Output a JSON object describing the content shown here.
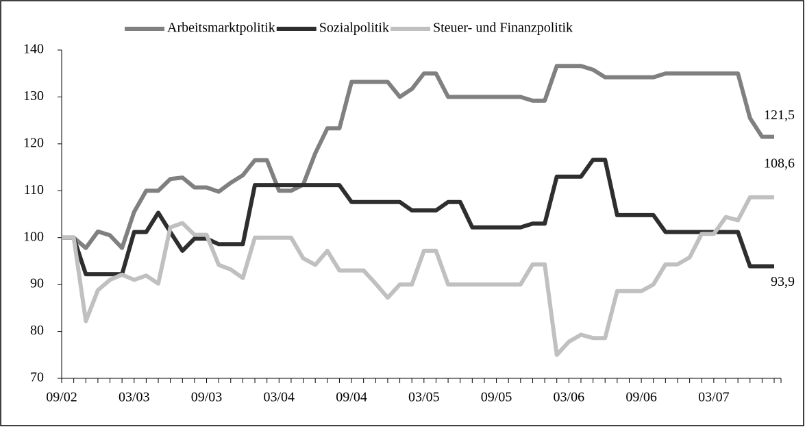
{
  "chart_data": {
    "type": "line",
    "categories": [
      "09/02",
      null,
      null,
      null,
      null,
      null,
      "03/03",
      null,
      null,
      null,
      null,
      null,
      "09/03",
      null,
      null,
      null,
      null,
      null,
      "03/04",
      null,
      null,
      null,
      null,
      null,
      "09/04",
      null,
      null,
      null,
      null,
      null,
      "03/05",
      null,
      null,
      null,
      null,
      null,
      "09/05",
      null,
      null,
      null,
      null,
      null,
      "03/06",
      null,
      null,
      null,
      null,
      null,
      "09/06",
      null,
      null,
      null,
      null,
      null,
      "03/07",
      null,
      null,
      null,
      null,
      null
    ],
    "series": [
      {
        "name": "Arbeitsmarktpolitik",
        "color": "#808080",
        "end_label": "121,5",
        "values": [
          100,
          100,
          97.8,
          101.3,
          100.5,
          97.8,
          105.5,
          110,
          110,
          112.5,
          112.8,
          110.7,
          110.7,
          109.8,
          111.7,
          113.3,
          116.5,
          116.5,
          110,
          110,
          111.3,
          118,
          123.3,
          123.3,
          133.2,
          133.2,
          133.2,
          133.2,
          130,
          131.7,
          135,
          135,
          130,
          130,
          130,
          130,
          130,
          130,
          130,
          129.2,
          129.2,
          136.6,
          136.6,
          136.6,
          135.8,
          134.2,
          134.2,
          134.2,
          134.2,
          134.2,
          135,
          135,
          135,
          135,
          135,
          135,
          135,
          125.5,
          121.5,
          121.5
        ]
      },
      {
        "name": "Sozialpolitik",
        "color": "#2e2e2e",
        "end_label": "93,9",
        "values": [
          100,
          100,
          92.2,
          92.2,
          92.2,
          92.2,
          101.2,
          101.2,
          105.3,
          101.2,
          97.2,
          99.8,
          99.8,
          98.6,
          98.6,
          98.6,
          111.2,
          111.2,
          111.2,
          111.2,
          111.2,
          111.2,
          111.2,
          111.2,
          107.6,
          107.6,
          107.6,
          107.6,
          107.6,
          105.8,
          105.8,
          105.8,
          107.6,
          107.6,
          102.2,
          102.2,
          102.2,
          102.2,
          102.2,
          103,
          103,
          113,
          113,
          113,
          116.6,
          116.6,
          104.8,
          104.8,
          104.8,
          104.8,
          101.2,
          101.2,
          101.2,
          101.2,
          101.2,
          101.2,
          101.2,
          93.9,
          93.9,
          93.9
        ]
      },
      {
        "name": "Steuer- und Finanzpolitik",
        "color": "#c0c0c0",
        "end_label": "108,6",
        "values": [
          100,
          100,
          82.2,
          88.8,
          91,
          92.1,
          91,
          91.9,
          90.2,
          102.2,
          103.1,
          100.6,
          100.6,
          94.2,
          93.2,
          91.4,
          100,
          100,
          100,
          100,
          95.6,
          94.2,
          97.2,
          93,
          93,
          93,
          90.2,
          87.2,
          90,
          90,
          97.2,
          97.2,
          90,
          90,
          90,
          90,
          90,
          90,
          90,
          94.3,
          94.3,
          75,
          77.8,
          79.3,
          78.6,
          78.6,
          88.6,
          88.6,
          88.6,
          90,
          94.3,
          94.3,
          95.8,
          100.8,
          100.8,
          104.4,
          103.7,
          108.6,
          108.6,
          108.6
        ]
      }
    ],
    "ylim": [
      70,
      140
    ],
    "yticks": [
      70,
      80,
      90,
      100,
      110,
      120,
      130,
      140
    ],
    "legend": "top"
  }
}
